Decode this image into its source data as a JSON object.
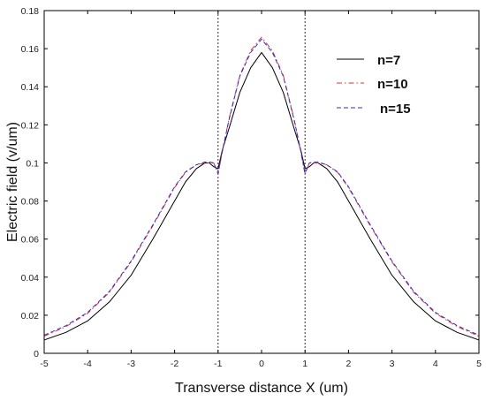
{
  "chart_data": {
    "type": "line",
    "title": "",
    "xlabel": "Transverse distance X (um)",
    "ylabel": "Electric field (v/um)",
    "xlim": [
      -5,
      5
    ],
    "ylim": [
      0,
      0.18
    ],
    "xticks": [
      -5,
      -4,
      -3,
      -2,
      -1,
      0,
      1,
      2,
      3,
      4,
      5
    ],
    "yticks": [
      0,
      0.02,
      0.04,
      0.06,
      0.08,
      0.1,
      0.12,
      0.14,
      0.16,
      0.18
    ],
    "xtick_labels": [
      "-5",
      "-4",
      "-3",
      "-2",
      "-1",
      "0",
      "1",
      "2",
      "3",
      "4",
      "5"
    ],
    "ytick_labels": [
      "0",
      "0.02",
      "0.04",
      "0.06",
      "0.08",
      "0.1",
      "0.12",
      "0.14",
      "0.16",
      "0.18"
    ],
    "grid": false,
    "legend_position": "top-right",
    "vlines": [
      -1,
      1
    ],
    "x": [
      -5,
      -4.5,
      -4,
      -3.5,
      -3,
      -2.5,
      -2,
      -1.75,
      -1.5,
      -1.3,
      -1.2,
      -1.1,
      -1,
      -0.9,
      -0.75,
      -0.5,
      -0.25,
      0,
      0.25,
      0.5,
      0.75,
      0.9,
      1,
      1.1,
      1.2,
      1.3,
      1.5,
      1.75,
      2,
      2.5,
      3,
      3.5,
      4,
      4.5,
      5
    ],
    "series": [
      {
        "name": "n=7",
        "color": "#000000",
        "dash": "solid",
        "values": [
          0.007,
          0.011,
          0.017,
          0.027,
          0.041,
          0.06,
          0.08,
          0.09,
          0.097,
          0.1,
          0.1,
          0.098,
          0.097,
          0.107,
          0.118,
          0.137,
          0.15,
          0.158,
          0.15,
          0.137,
          0.118,
          0.107,
          0.097,
          0.098,
          0.1,
          0.1,
          0.097,
          0.09,
          0.08,
          0.06,
          0.041,
          0.027,
          0.017,
          0.011,
          0.007
        ]
      },
      {
        "name": "n=10",
        "color": "#e03030",
        "dash": "dashdot",
        "values": [
          0.009,
          0.014,
          0.021,
          0.032,
          0.048,
          0.067,
          0.087,
          0.095,
          0.099,
          0.1,
          0.1,
          0.1,
          0.094,
          0.106,
          0.123,
          0.146,
          0.159,
          0.166,
          0.159,
          0.146,
          0.123,
          0.106,
          0.094,
          0.1,
          0.1,
          0.1,
          0.099,
          0.095,
          0.087,
          0.067,
          0.048,
          0.032,
          0.021,
          0.014,
          0.009
        ]
      },
      {
        "name": "n=15",
        "color": "#3030d0",
        "dash": "dashed",
        "values": [
          0.0095,
          0.0145,
          0.0215,
          0.0325,
          0.0485,
          0.0675,
          0.0875,
          0.0953,
          0.099,
          0.1005,
          0.1005,
          0.1,
          0.0945,
          0.1065,
          0.1225,
          0.1455,
          0.158,
          0.165,
          0.158,
          0.1455,
          0.1225,
          0.1065,
          0.0945,
          0.1,
          0.1005,
          0.1005,
          0.099,
          0.0953,
          0.0875,
          0.0675,
          0.0485,
          0.0325,
          0.0215,
          0.0145,
          0.0095
        ]
      }
    ]
  }
}
